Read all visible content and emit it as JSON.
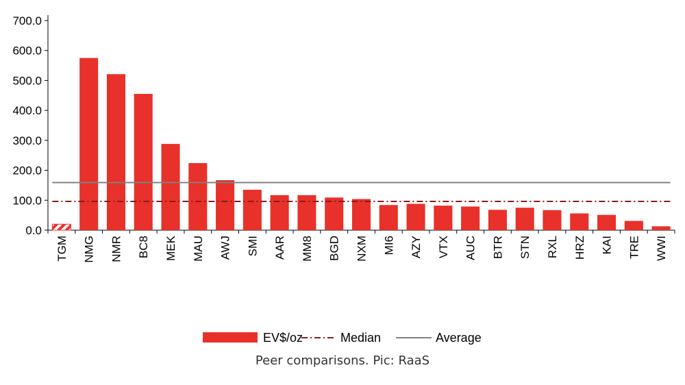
{
  "chart_data": {
    "type": "bar",
    "categories": [
      "TGM",
      "NMG",
      "NMR",
      "BC8",
      "MEK",
      "MAU",
      "AWJ",
      "SMI",
      "AAR",
      "MM8",
      "BGD",
      "NXM",
      "MI6",
      "AZY",
      "VTX",
      "AUC",
      "BTR",
      "STN",
      "RXL",
      "HRZ",
      "KAI",
      "TRE",
      "WWI"
    ],
    "series": [
      {
        "name": "EV$/oz",
        "values": [
          20,
          575,
          521,
          455,
          288,
          224,
          167,
          135,
          117,
          117,
          109,
          104,
          84,
          88,
          82,
          79,
          68,
          75,
          67,
          56,
          51,
          31,
          13
        ],
        "color": "#e8312a",
        "highlight_category": "TGM",
        "highlight_style": "hatched"
      }
    ],
    "reference_lines": [
      {
        "name": "Median",
        "value": 96,
        "color": "#8b1a1a",
        "style": "dash-dot"
      },
      {
        "name": "Average",
        "value": 159,
        "color": "#808080",
        "style": "solid"
      }
    ],
    "yticks": [
      "0.0",
      "100.0",
      "200.0",
      "300.0",
      "400.0",
      "500.0",
      "600.0",
      "700.0"
    ],
    "ylim": [
      0,
      700
    ],
    "xlabel": "",
    "ylabel": "",
    "title": "",
    "grid": false,
    "legend_position": "bottom"
  },
  "caption": "Peer comparisons. Pic: RaaS"
}
